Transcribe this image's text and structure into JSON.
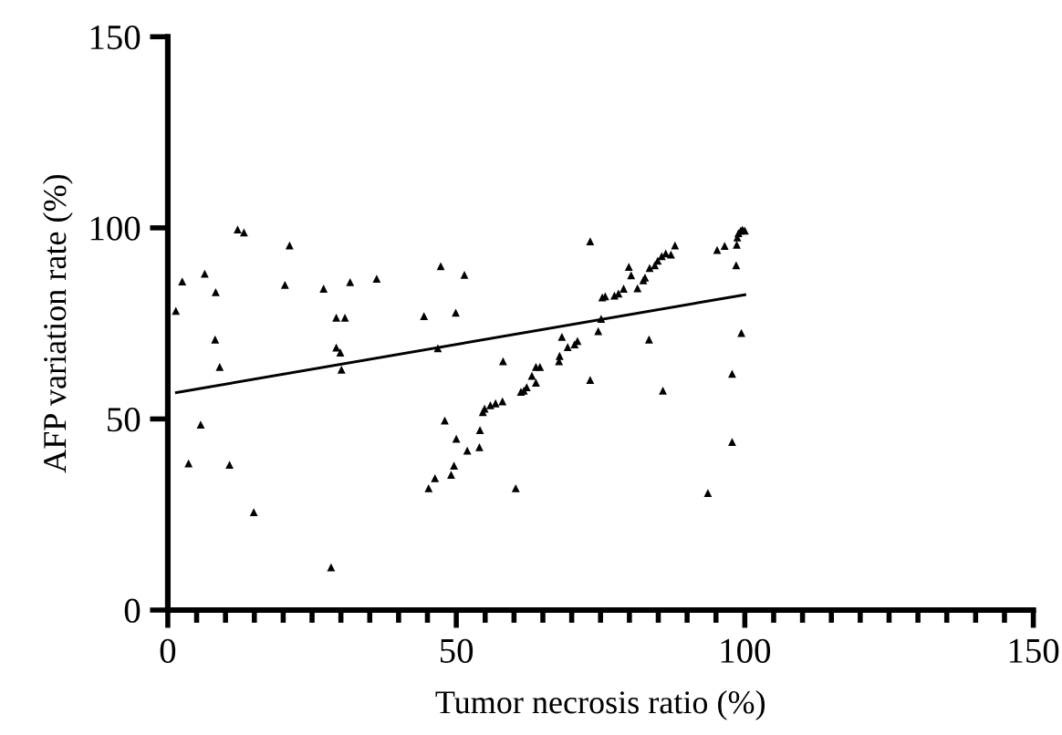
{
  "chart_data": {
    "type": "scatter",
    "xlabel": "Tumor necrosis ratio (%)",
    "ylabel": "AFP variation rate (%)",
    "xlim": [
      0,
      150
    ],
    "ylim": [
      0,
      150
    ],
    "xticks": [
      0,
      {
        "value": 5,
        "label": null
      },
      {
        "value": 10,
        "label": null
      },
      {
        "value": 15,
        "label": null
      },
      {
        "value": 20,
        "label": null
      },
      {
        "value": 25,
        "label": null
      },
      {
        "value": 30,
        "label": null
      },
      {
        "value": 35,
        "label": null
      },
      {
        "value": 40,
        "label": null
      },
      {
        "value": 45,
        "label": null
      },
      50,
      {
        "value": 55,
        "label": null
      },
      {
        "value": 60,
        "label": null
      },
      {
        "value": 65,
        "label": null
      },
      {
        "value": 70,
        "label": null
      },
      {
        "value": 75,
        "label": null
      },
      {
        "value": 80,
        "label": null
      },
      {
        "value": 85,
        "label": null
      },
      {
        "value": 90,
        "label": null
      },
      {
        "value": 95,
        "label": null
      },
      100,
      {
        "value": 105,
        "label": null
      },
      {
        "value": 110,
        "label": null
      },
      {
        "value": 115,
        "label": null
      },
      {
        "value": 120,
        "label": null
      },
      {
        "value": 125,
        "label": null
      },
      {
        "value": 130,
        "label": null
      },
      {
        "value": 135,
        "label": null
      },
      {
        "value": 140,
        "label": null
      },
      {
        "value": 145,
        "label": null
      },
      150
    ],
    "yticks": [
      0,
      50,
      100,
      150
    ],
    "grid": false,
    "series": [
      {
        "color": "#000000",
        "marker": "triangle",
        "x": [
          1.4,
          2.5,
          3.6,
          5.7,
          6.4,
          8.3,
          8.2,
          9.0,
          10.7,
          12.1,
          13.2,
          14.9,
          20.3,
          21.1,
          27.0,
          28.3,
          29.2,
          30.7,
          29.2,
          29.9,
          30.1,
          31.6,
          36.2,
          44.4,
          45.2,
          46.3,
          46.8,
          47.3,
          48.0,
          49.1,
          49.6,
          49.9,
          50.0,
          51.4,
          51.9,
          54.0,
          54.1,
          54.6,
          54.9,
          55.9,
          56.8,
          58.0,
          58.1,
          60.3,
          61.2,
          61.7,
          62.2,
          63.1,
          63.8,
          63.8,
          64.5,
          67.8,
          67.9,
          68.3,
          69.3,
          70.5,
          71.0,
          73.2,
          73.2,
          74.6,
          75.1,
          75.3,
          75.8,
          77.4,
          78.1,
          79.0,
          79.9,
          80.3,
          81.4,
          82.4,
          82.7,
          83.4,
          83.5,
          84.4,
          84.9,
          85.6,
          85.8,
          86.3,
          87.2,
          87.9,
          93.6,
          95.2,
          96.5,
          97.8,
          97.8,
          98.5,
          98.6,
          98.7,
          98.9,
          99.3,
          99.6,
          100,
          99.4
        ],
        "values": [
          78.3,
          86,
          38.4,
          48.5,
          88,
          83.2,
          70.8,
          63.6,
          38,
          99.6,
          98.8,
          25.6,
          85.1,
          95.4,
          84.1,
          11.2,
          76.5,
          76.5,
          68.7,
          67.4,
          62.9,
          85.8,
          86.7,
          76.9,
          31.9,
          34.5,
          68.5,
          90.0,
          49.6,
          35.4,
          37.8,
          77.8,
          44.8,
          87.7,
          41.7,
          42.6,
          47.1,
          51.8,
          52.7,
          53.6,
          54.1,
          54.6,
          65.1,
          31.9,
          57.1,
          57.4,
          58.3,
          61.3,
          63.6,
          59.5,
          63.6,
          65.1,
          66.5,
          71.5,
          68.8,
          69.5,
          70.4,
          60.2,
          96.5,
          73.0,
          76.2,
          81.8,
          82.1,
          82.3,
          82.8,
          84.1,
          89.8,
          87.6,
          84.2,
          86.3,
          87.0,
          70.8,
          89.5,
          90.2,
          91.4,
          92.6,
          57.4,
          93.3,
          93.0,
          95.4,
          30.6,
          94.2,
          95.3,
          61.8,
          44.0,
          90.2,
          95.6,
          97.5,
          98.6,
          99.3,
          99.5,
          99.3,
          72.5
        ]
      },
      {
        "type": "line",
        "color": "#000000",
        "marker": "none",
        "line_style": "solid",
        "x": [
          1.5,
          100
        ],
        "values": [
          56.9,
          82.5
        ]
      }
    ]
  }
}
